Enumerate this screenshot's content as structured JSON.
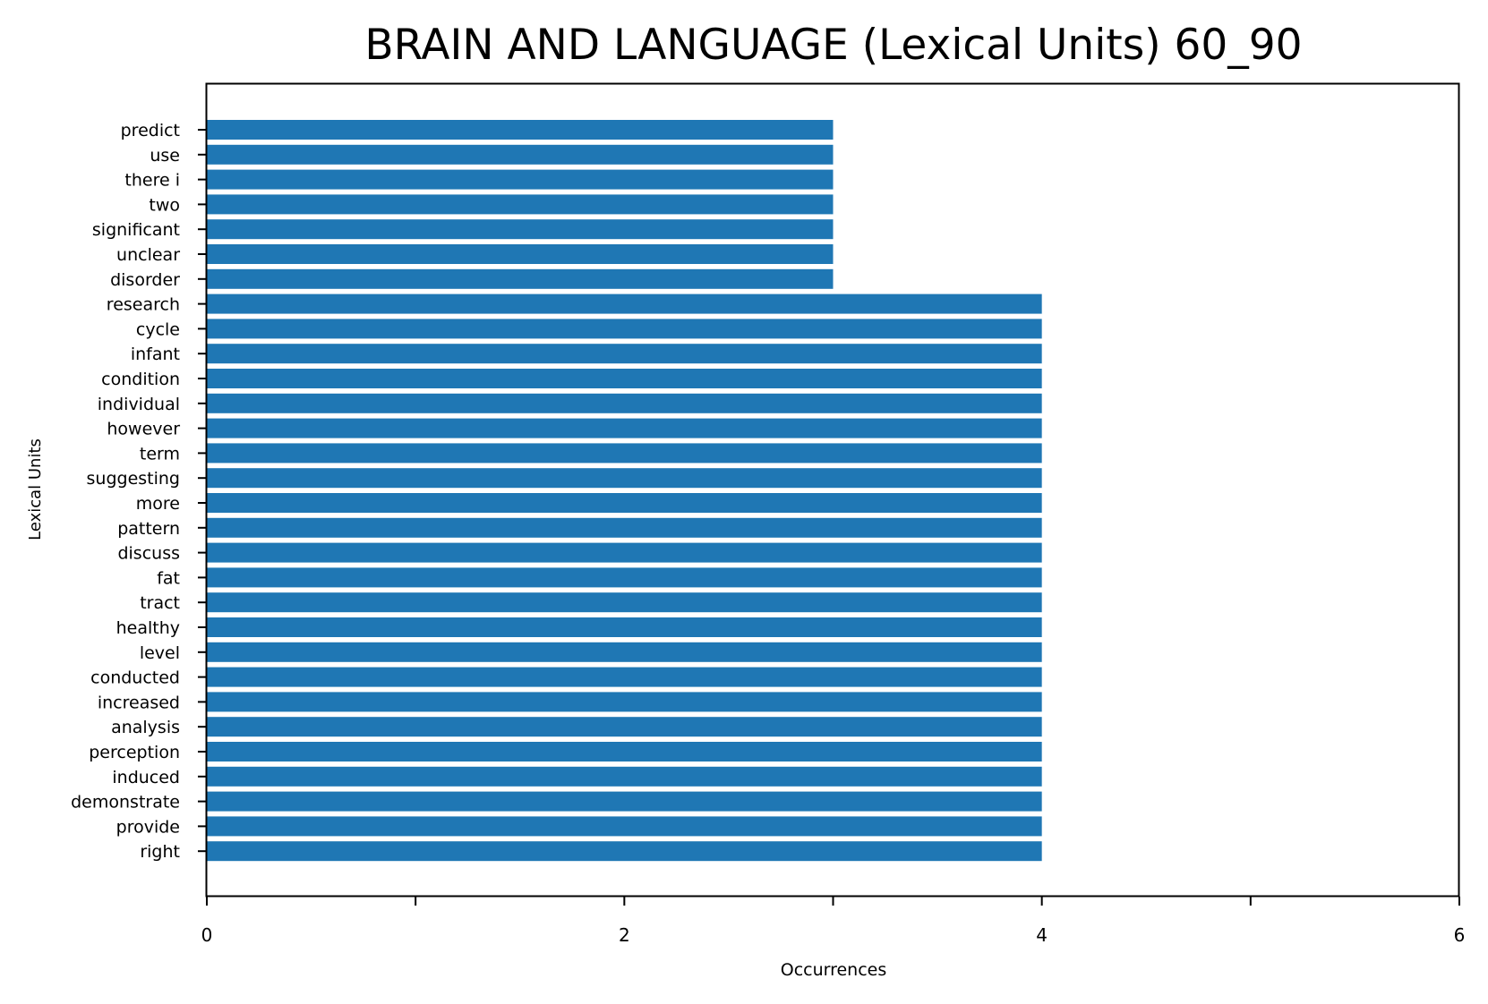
{
  "chart_data": {
    "type": "bar",
    "orientation": "horizontal",
    "title": "BRAIN AND LANGUAGE (Lexical Units) 60_90",
    "xlabel": "Occurrences",
    "ylabel": "Lexical Units",
    "xlim": [
      0,
      6
    ],
    "xticks": [
      0,
      1,
      2,
      3,
      4,
      5,
      6
    ],
    "xtick_labels": [
      "0",
      "",
      "2",
      "",
      "4",
      "",
      "6"
    ],
    "grid": false,
    "bar_color": "#1f77b4",
    "categories": [
      "predict",
      "use",
      "there i",
      "two",
      "significant",
      "unclear",
      "disorder",
      "research",
      "cycle",
      "infant",
      "condition",
      "individual",
      "however",
      "term",
      "suggesting",
      "more",
      "pattern",
      "discuss",
      "fat",
      "tract",
      "healthy",
      "level",
      "conducted",
      "increased",
      "analysis",
      "perception",
      "induced",
      "demonstrate",
      "provide",
      "right"
    ],
    "values": [
      3,
      3,
      3,
      3,
      3,
      3,
      3,
      4,
      4,
      4,
      4,
      4,
      4,
      4,
      4,
      4,
      4,
      4,
      4,
      4,
      4,
      4,
      4,
      4,
      4,
      4,
      4,
      4,
      4,
      4
    ]
  }
}
